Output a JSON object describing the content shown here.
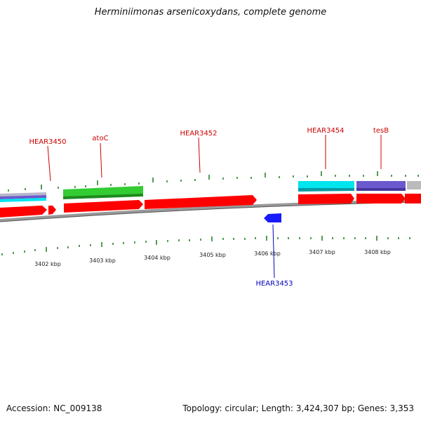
{
  "title": "Herminiimonas arsenicoxydans, complete genome",
  "footer": {
    "accession": "Accession: NC_009138",
    "summary": "Topology: circular; Length: 3,424,307 bp; Genes: 3,353"
  },
  "colors": {
    "forward_gene": "#ff0000",
    "reverse_gene": "#1a1aff",
    "forward_label": "#cc0000",
    "reverse_label": "#0000bb",
    "tick": "#1a7a1a",
    "backbone": "#888888",
    "cog_green": "#33cc33",
    "cog_cyan": "#00e5ee",
    "cog_purple": "#6a5acd",
    "cog_gray": "#bbbbbb"
  },
  "scale_labels": [
    "3402 kbp",
    "3403 kbp",
    "3404 kbp",
    "3405 kbp",
    "3406 kbp",
    "3407 kbp",
    "3408 kbp"
  ],
  "gene_labels": [
    {
      "name": "HEAR3450",
      "strand": "forward"
    },
    {
      "name": "atoC",
      "strand": "forward"
    },
    {
      "name": "HEAR3452",
      "strand": "forward"
    },
    {
      "name": "HEAR3454",
      "strand": "forward"
    },
    {
      "name": "tesB",
      "strand": "forward"
    },
    {
      "name": "HEAR3453",
      "strand": "reverse"
    }
  ]
}
